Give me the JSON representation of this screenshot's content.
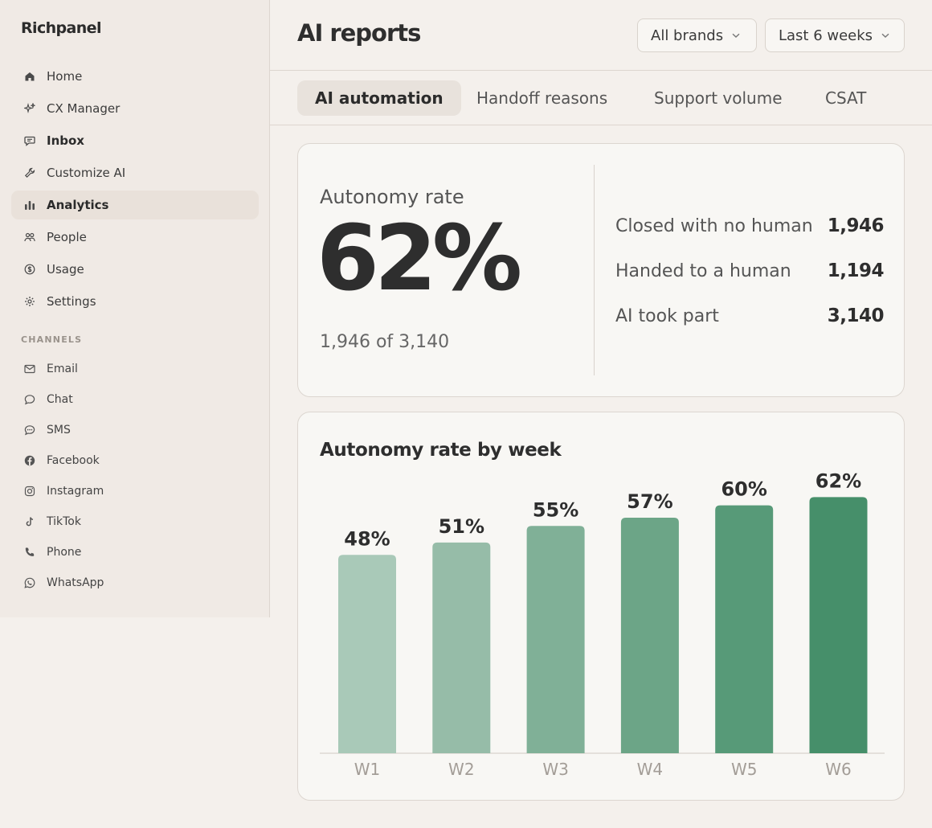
{
  "app": {
    "brand": "Richpanel"
  },
  "sidebar": {
    "items": [
      {
        "label": "Home",
        "icon": "home-icon"
      },
      {
        "label": "CX Manager",
        "icon": "sparkle-icon"
      },
      {
        "label": "Inbox",
        "icon": "chat-bubble-icon"
      },
      {
        "label": "Customize AI",
        "icon": "wrench-icon"
      },
      {
        "label": "Analytics",
        "icon": "bar-chart-icon",
        "active": true
      },
      {
        "label": "People",
        "icon": "people-icon"
      },
      {
        "label": "Usage",
        "icon": "dollar-circle-icon"
      },
      {
        "label": "Settings",
        "icon": "gear-icon"
      }
    ],
    "channels_label": "CHANNELS",
    "channels": [
      {
        "label": "Email",
        "icon": "mail-icon"
      },
      {
        "label": "Chat",
        "icon": "chat-icon"
      },
      {
        "label": "SMS",
        "icon": "sms-icon"
      },
      {
        "label": "Facebook",
        "icon": "facebook-icon"
      },
      {
        "label": "Instagram",
        "icon": "instagram-icon"
      },
      {
        "label": "TikTok",
        "icon": "tiktok-icon"
      },
      {
        "label": "Phone",
        "icon": "phone-icon"
      },
      {
        "label": "WhatsApp",
        "icon": "whatsapp-icon"
      }
    ]
  },
  "header": {
    "title": "AI reports",
    "brand_filter": "All brands",
    "date_filter": "Last 6 weeks"
  },
  "tabs": [
    {
      "label": "AI automation",
      "active": true
    },
    {
      "label": "Handoff reasons"
    },
    {
      "label": "Support volume"
    },
    {
      "label": "CSAT"
    }
  ],
  "kpi": {
    "label": "Autonomy rate",
    "value": "62%",
    "sub": "1,946 of 3,140",
    "stats": [
      {
        "label": "Closed with no human",
        "value": "1,946"
      },
      {
        "label": "Handed to a human",
        "value": "1,194"
      },
      {
        "label": "AI took part",
        "value": "3,140"
      }
    ]
  },
  "chart_data": {
    "type": "bar",
    "title": "Autonomy rate by week",
    "categories": [
      "W1",
      "W2",
      "W3",
      "W4",
      "W5",
      "W6"
    ],
    "values": [
      48,
      51,
      55,
      57,
      60,
      62
    ],
    "value_labels": [
      "48%",
      "51%",
      "55%",
      "57%",
      "60%",
      "62%"
    ],
    "unit": "%",
    "ylim": [
      0,
      100
    ],
    "colors": [
      "#a9c9b8",
      "#96bca8",
      "#80b097",
      "#6ca587",
      "#579a78",
      "#468f6a"
    ],
    "grid": false,
    "legend": "none"
  }
}
